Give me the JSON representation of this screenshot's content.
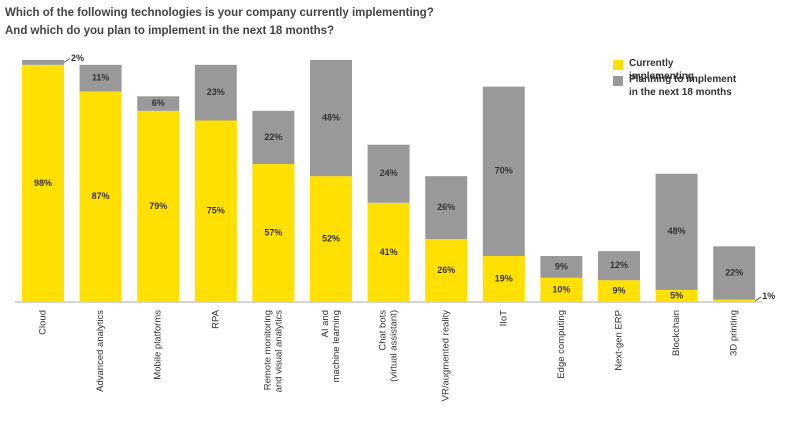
{
  "chart_data": {
    "type": "stacked_bar",
    "title": [
      "Which of the following technologies is your company currently implementing?",
      "And which do you plan to implement in the next 18 months?"
    ],
    "categories": [
      [
        "Cloud"
      ],
      [
        "Advanced analytics"
      ],
      [
        "Mobile platforms"
      ],
      [
        "RPA"
      ],
      [
        "Remote monitoring",
        "and visual analytics"
      ],
      [
        "AI and",
        "machine learning"
      ],
      [
        "Chat bots",
        "(virtual assistant)"
      ],
      [
        "VR/augmented reality"
      ],
      [
        "IIoT"
      ],
      [
        "Edge computing"
      ],
      [
        "Next-gen ERP"
      ],
      [
        "Blockchain"
      ],
      [
        "3D printing"
      ]
    ],
    "series": [
      {
        "name": "Currently implementing",
        "color": "#ffe000",
        "values": [
          98,
          87,
          79,
          75,
          57,
          52,
          41,
          26,
          19,
          10,
          9,
          5,
          1
        ],
        "value_labels": [
          "98%",
          "87%",
          "79%",
          "75%",
          "57%",
          "52%",
          "41%",
          "26%",
          "19%",
          "10%",
          "9%",
          "5%",
          "1%"
        ]
      },
      {
        "name": "Planning to implement in the next 18 months",
        "color": "#999999",
        "values": [
          2,
          11,
          6,
          23,
          22,
          48,
          24,
          26,
          70,
          9,
          12,
          48,
          22
        ],
        "value_labels": [
          "2%",
          "11%",
          "6%",
          "23%",
          "22%",
          "48%",
          "24%",
          "26%",
          "70%",
          "9%",
          "12%",
          "48%",
          "22%"
        ]
      }
    ],
    "ylim": [
      0,
      100
    ]
  }
}
